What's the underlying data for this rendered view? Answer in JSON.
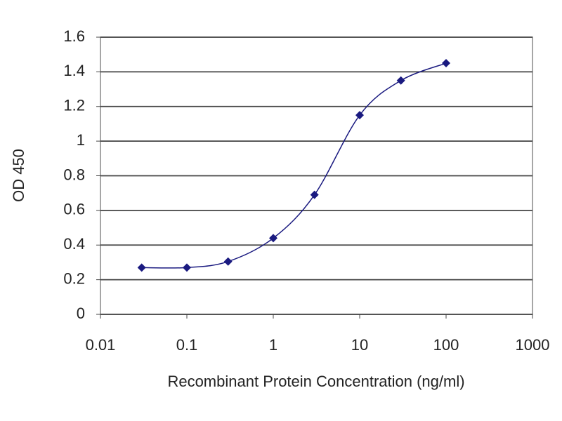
{
  "chart_data": {
    "type": "line",
    "x_label": "Recombinant Protein Concentration (ng/ml)",
    "y_label": "OD 450",
    "x": [
      0.03,
      0.1,
      0.3,
      1,
      3,
      10,
      30,
      100
    ],
    "series": [
      {
        "color": "#1a1a80",
        "values": [
          0.27,
          0.27,
          0.305,
          0.44,
          0.69,
          1.15,
          1.35,
          1.45
        ]
      }
    ],
    "log_x": true,
    "smooth": true,
    "grid": true,
    "xlim": [
      0.01,
      1000
    ],
    "xticks": [
      0.01,
      0.1,
      1,
      10,
      100,
      1000
    ],
    "ylim": [
      0,
      1.6
    ],
    "yticks": [
      0,
      0.2,
      0.4,
      0.6,
      0.8,
      1,
      1.2,
      1.4,
      1.6
    ]
  }
}
